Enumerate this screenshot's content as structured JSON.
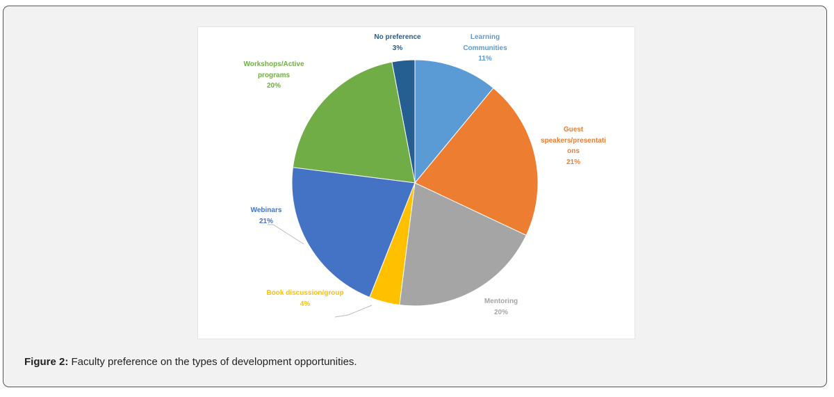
{
  "caption": {
    "label": "Figure 2:",
    "text": " Faculty preference on the types of development opportunities."
  },
  "chart_data": {
    "type": "pie",
    "start": "top",
    "direction": "clockwise",
    "slices": [
      {
        "name": "Learning Communities",
        "lines": [
          "Learning",
          "Communities"
        ],
        "value": 11,
        "label": "11%",
        "color": "#5b9bd5"
      },
      {
        "name": "Guest speakers/presentations",
        "lines": [
          "Guest",
          "speakers/presentati",
          "ons"
        ],
        "value": 21,
        "label": "21%",
        "color": "#ed7d31"
      },
      {
        "name": "Mentoring",
        "lines": [
          "Mentoring"
        ],
        "value": 20,
        "label": "20%",
        "color": "#a5a5a5"
      },
      {
        "name": "Book discussion/group",
        "lines": [
          "Book discussion/group"
        ],
        "value": 4,
        "label": "4%",
        "color": "#ffc000"
      },
      {
        "name": "Webinars",
        "lines": [
          "Webinars"
        ],
        "value": 21,
        "label": "21%",
        "color": "#4472c4"
      },
      {
        "name": "Workshops/Active programs",
        "lines": [
          "Workshops/Active",
          "programs"
        ],
        "value": 20,
        "label": "20%",
        "color": "#70ad47"
      },
      {
        "name": "No preference",
        "lines": [
          "No preference"
        ],
        "value": 3,
        "label": "3%",
        "color": "#255e91"
      }
    ],
    "label_colors": [
      "#5b9bd5",
      "#ed7d31",
      "#a5a5a5",
      "#ffc000",
      "#4472c4",
      "#70ad47",
      "#255e91"
    ]
  }
}
